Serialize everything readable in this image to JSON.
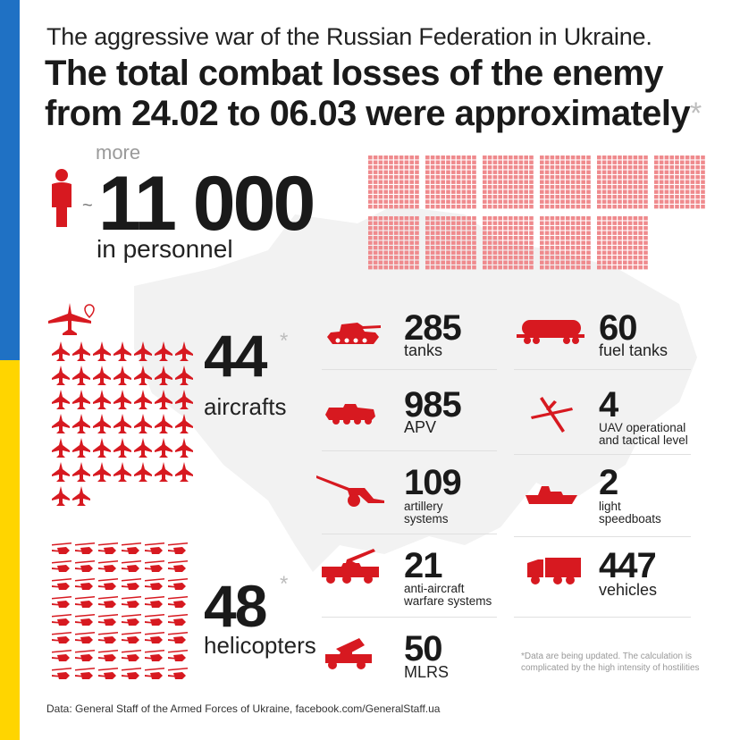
{
  "header": {
    "subtitle": "The aggressive war of the Russian Federation in Ukraine.",
    "title_line1": "The total combat losses of the enemy",
    "title_line2": "from 24.02 to 06.03 were approximately",
    "title_asterisk": "*"
  },
  "personnel": {
    "prefix": "more",
    "approx": "~",
    "value": "11 000",
    "label": "in personnel"
  },
  "aircraft": {
    "value": "44",
    "asterisk": "*",
    "label": "aircrafts"
  },
  "helicopters": {
    "value": "48",
    "asterisk": "*",
    "label": "helicopters"
  },
  "equipment": {
    "tanks": {
      "value": "285",
      "label": "tanks"
    },
    "apv": {
      "value": "985",
      "label": "APV"
    },
    "artillery": {
      "value": "109",
      "label_line1": "artillery",
      "label_line2": "systems"
    },
    "anti_aircraft": {
      "value": "21",
      "label_line1": "anti-aircraft",
      "label_line2": "warfare systems"
    },
    "mlrs": {
      "value": "50",
      "label": "MLRS"
    },
    "fuel_tanks": {
      "value": "60",
      "label": "fuel tanks"
    },
    "uav": {
      "value": "4",
      "label_line1": "UAV operational",
      "label_line2": "and tactical level"
    },
    "speedboats": {
      "value": "2",
      "label_line1": "light",
      "label_line2": "speedboats"
    },
    "vehicles": {
      "value": "447",
      "label": "vehicles"
    }
  },
  "note": {
    "line1": "*Data are being updated. The calculation is",
    "line2": "complicated by the high intensity of hostilities"
  },
  "source": "Data: General Staff of the Armed Forces of Ukraine, facebook.com/GeneralStaff.ua",
  "colors": {
    "accent": "#d71920",
    "blue": "#1f71c4",
    "yellow": "#ffd500",
    "map": "#f1f1f1"
  }
}
